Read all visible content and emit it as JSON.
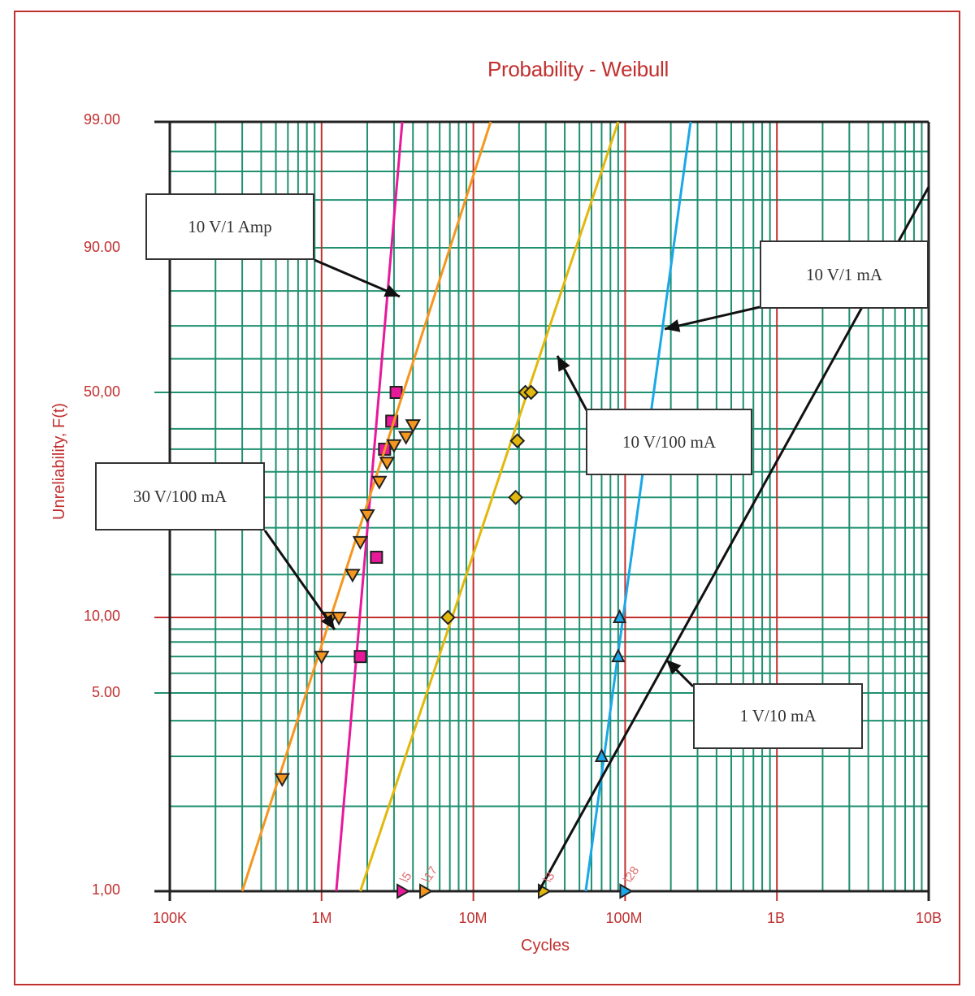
{
  "chart": {
    "title": "Probability - Weibull",
    "xlabel": "Cycles",
    "ylabel": "Unreliability, F(t)",
    "y_ticks": [
      "99.00",
      "90.00",
      "50,00",
      "10,00",
      "5.00",
      "1,00"
    ],
    "x_ticks": [
      "100K",
      "1M",
      "10M",
      "100M",
      "1B",
      "10B"
    ],
    "callouts": [
      "10 V/1 Amp",
      "10 V/1 mA",
      "10 V/100 mA",
      "30 V/100 mA",
      "1 V/10 mA"
    ],
    "suspension_labels": [
      "\\5",
      "\\17",
      "\\3",
      "\\28"
    ]
  },
  "colors": {
    "frame": "#c0302f",
    "grid_minor": "#1f9070",
    "grid_major": "#c0302f",
    "series_10V_1Amp": "#e8189a",
    "series_30V_100mA": "#f5961e",
    "series_10V_100mA": "#e2b80c",
    "series_10V_1mA": "#1aa8e8",
    "series_1V_10mA": "#111111"
  },
  "chart_data": {
    "type": "scatter",
    "title": "Probability - Weibull",
    "xlabel": "Cycles",
    "ylabel": "Unreliability, F(t)",
    "x_scale": "log",
    "y_scale": "weibull",
    "xlim": [
      100000,
      10000000000
    ],
    "ylim": [
      1,
      99
    ],
    "grid": true,
    "x_tick_labels": [
      "100K",
      "1M",
      "10M",
      "100M",
      "1B",
      "10B"
    ],
    "y_tick_labels": [
      "99.00",
      "90.00",
      "50,00",
      "10,00",
      "5.00",
      "1,00"
    ],
    "series": [
      {
        "name": "10 V/1 Amp",
        "marker": "square",
        "color": "#e8189a",
        "points": [
          [
            1800000,
            7
          ],
          [
            2300000,
            16
          ],
          [
            2600000,
            35
          ],
          [
            2900000,
            42
          ],
          [
            3100000,
            50
          ]
        ],
        "fit_line": [
          [
            1250000,
            1
          ],
          [
            3400000,
            99
          ]
        ],
        "suspensions": {
          "x": 3400000,
          "count": 5
        }
      },
      {
        "name": "30 V/100 mA",
        "marker": "triangle-down",
        "color": "#f5961e",
        "points": [
          [
            550000,
            2.5
          ],
          [
            1000000,
            7
          ],
          [
            1150000,
            10
          ],
          [
            1300000,
            10
          ],
          [
            1600000,
            14
          ],
          [
            1800000,
            18
          ],
          [
            2000000,
            22
          ],
          [
            2400000,
            28
          ],
          [
            2700000,
            32
          ],
          [
            3000000,
            36
          ],
          [
            3600000,
            38
          ],
          [
            4000000,
            41
          ]
        ],
        "fit_line": [
          [
            300000,
            1
          ],
          [
            13000000,
            99
          ]
        ],
        "suspensions": {
          "x": 4800000,
          "count": 17
        }
      },
      {
        "name": "10 V/100 mA",
        "marker": "diamond",
        "color": "#e2b80c",
        "points": [
          [
            6800000,
            10
          ],
          [
            19000000,
            25
          ],
          [
            19500000,
            37
          ],
          [
            22000000,
            50
          ],
          [
            24000000,
            50
          ]
        ],
        "fit_line": [
          [
            1800000,
            1
          ],
          [
            90000000,
            99
          ]
        ],
        "suspensions": {
          "x": 29000000,
          "count": 3
        }
      },
      {
        "name": "10 V/1 mA",
        "marker": "triangle-up",
        "color": "#1aa8e8",
        "points": [
          [
            70000000,
            3
          ],
          [
            90000000,
            7
          ],
          [
            92000000,
            10
          ]
        ],
        "fit_line": [
          [
            55000000,
            1
          ],
          [
            270000000,
            99
          ]
        ],
        "suspensions": {
          "x": 100000000,
          "count": 28
        }
      },
      {
        "name": "1 V/10 mA",
        "marker": "none",
        "color": "#111111",
        "points": [],
        "fit_line": [
          [
            27000000,
            1
          ],
          [
            10000000000,
            96
          ]
        ]
      }
    ]
  }
}
